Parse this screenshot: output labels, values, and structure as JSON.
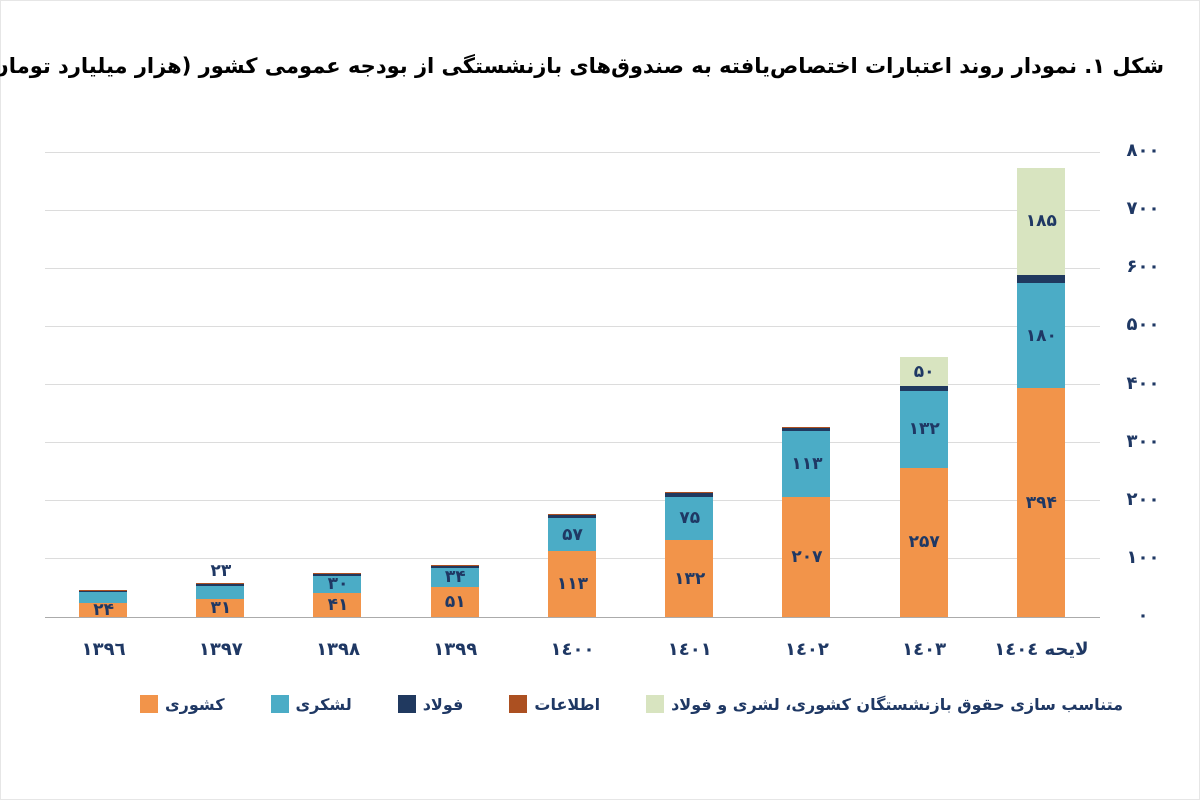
{
  "figure": {
    "title": "شکل ۱. نمودار روند اعتبارات اختصاص‌یافته به صندوق‌های بازنشستگی از بودجه عمومی کشور (هزار میلیارد تومان)"
  },
  "colors": {
    "gridline": "#dcdcdc",
    "axis_line": "#ababab",
    "text_labels": "#1f3864",
    "title_text": "#000000"
  },
  "chart_data": {
    "type": "bar",
    "stacked": true,
    "title": "شکل ۱. نمودار روند اعتبارات اختصاص‌یافته به صندوق‌های بازنشستگی از بودجه عمومی کشور (هزار میلیارد تومان)",
    "unit": "هزار میلیارد تومان",
    "ylim": [
      0,
      800
    ],
    "grid": true,
    "legend_position": "bottom",
    "y_axis_side": "right",
    "y_ticks": [
      {
        "value": 0,
        "label": "۰"
      },
      {
        "value": 100,
        "label": "۱۰۰"
      },
      {
        "value": 200,
        "label": "۲۰۰"
      },
      {
        "value": 300,
        "label": "۳۰۰"
      },
      {
        "value": 400,
        "label": "۴۰۰"
      },
      {
        "value": 500,
        "label": "۵۰۰"
      },
      {
        "value": 600,
        "label": "۶۰۰"
      },
      {
        "value": 700,
        "label": "۷۰۰"
      },
      {
        "value": 800,
        "label": "۸۰۰"
      }
    ],
    "categories": [
      "١٣٩٦",
      "١٣٩٧",
      "١٣٩٨",
      "١٣٩٩",
      "١٤٠٠",
      "١٤٠١",
      "١٤٠٢",
      "١٤٠٣",
      "لایحه ١٤٠٤"
    ],
    "series": [
      {
        "name": "کشوری",
        "color": "#f2944a",
        "values": [
          24,
          31,
          41,
          51,
          113,
          132,
          207,
          257,
          394
        ],
        "labels": [
          "۲۴",
          "۳۱",
          "۴۱",
          "۵۱",
          "۱۱۳",
          "۱۳۲",
          "۲۰۷",
          "۲۵۷",
          "۳۹۴"
        ]
      },
      {
        "name": "لشکری",
        "color": "#4bacc6",
        "values": [
          19,
          23,
          30,
          34,
          57,
          75,
          113,
          132,
          180
        ],
        "labels": [
          "",
          "۲۳",
          "۳۰",
          "۳۴",
          "۵۷",
          "۷۵",
          "۱۱۳",
          "۱۳۲",
          "۱۸۰"
        ]
      },
      {
        "name": "فولاد",
        "color": "#20395f",
        "values": [
          1.5,
          2,
          2.5,
          3,
          5,
          6,
          5,
          8,
          14
        ],
        "labels": [
          "",
          "",
          "",
          "",
          "",
          "",
          "",
          "",
          ""
        ]
      },
      {
        "name": "اطلاعات",
        "color": "#ac5021",
        "values": [
          1,
          1,
          1,
          1,
          1.5,
          1.5,
          1.5,
          0,
          0
        ],
        "labels": [
          "",
          "",
          "",
          "",
          "",
          "",
          "",
          "",
          ""
        ]
      },
      {
        "name": "متناسب سازی حقوق بازنشستگان کشوری، لشری و فولاد",
        "color": "#d8e4c0",
        "values": [
          0,
          0,
          0,
          0,
          0,
          0,
          0,
          50,
          185
        ],
        "labels": [
          "",
          "",
          "",
          "",
          "",
          "",
          "",
          "۵۰",
          "۱۸۵"
        ]
      }
    ]
  }
}
